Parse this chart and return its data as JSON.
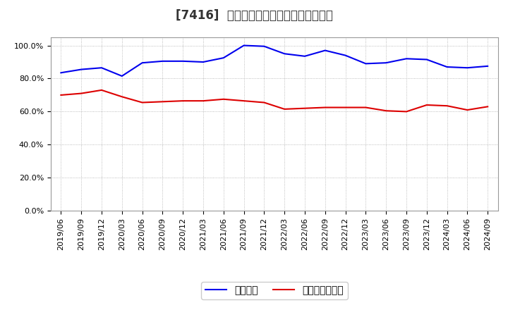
{
  "title": "[7416]  固定比率、固定長期適合率の推移",
  "blue_label": "固定比率",
  "red_label": "固定長期適合率",
  "x_labels": [
    "2019/06",
    "2019/09",
    "2019/12",
    "2020/03",
    "2020/06",
    "2020/09",
    "2020/12",
    "2021/03",
    "2021/06",
    "2021/09",
    "2021/12",
    "2022/03",
    "2022/06",
    "2022/09",
    "2022/12",
    "2023/03",
    "2023/06",
    "2023/09",
    "2023/12",
    "2024/03",
    "2024/06",
    "2024/09"
  ],
  "blue_values": [
    83.5,
    85.5,
    86.5,
    81.5,
    89.5,
    90.5,
    90.5,
    90.0,
    92.5,
    100.0,
    99.5,
    95.0,
    93.5,
    97.0,
    94.0,
    89.0,
    89.5,
    92.0,
    91.5,
    87.0,
    86.5,
    87.5
  ],
  "red_values": [
    70.0,
    71.0,
    73.0,
    69.0,
    65.5,
    66.0,
    66.5,
    66.5,
    67.5,
    66.5,
    65.5,
    61.5,
    62.0,
    62.5,
    62.5,
    62.5,
    60.5,
    60.0,
    64.0,
    63.5,
    61.0,
    63.0
  ],
  "ylim": [
    0,
    105
  ],
  "yticks": [
    0,
    20,
    40,
    60,
    80,
    100
  ],
  "blue_color": "#0000ee",
  "red_color": "#dd0000",
  "grid_color": "#aaaaaa",
  "bg_color": "#ffffff",
  "title_fontsize": 12,
  "tick_fontsize": 8,
  "legend_fontsize": 10
}
